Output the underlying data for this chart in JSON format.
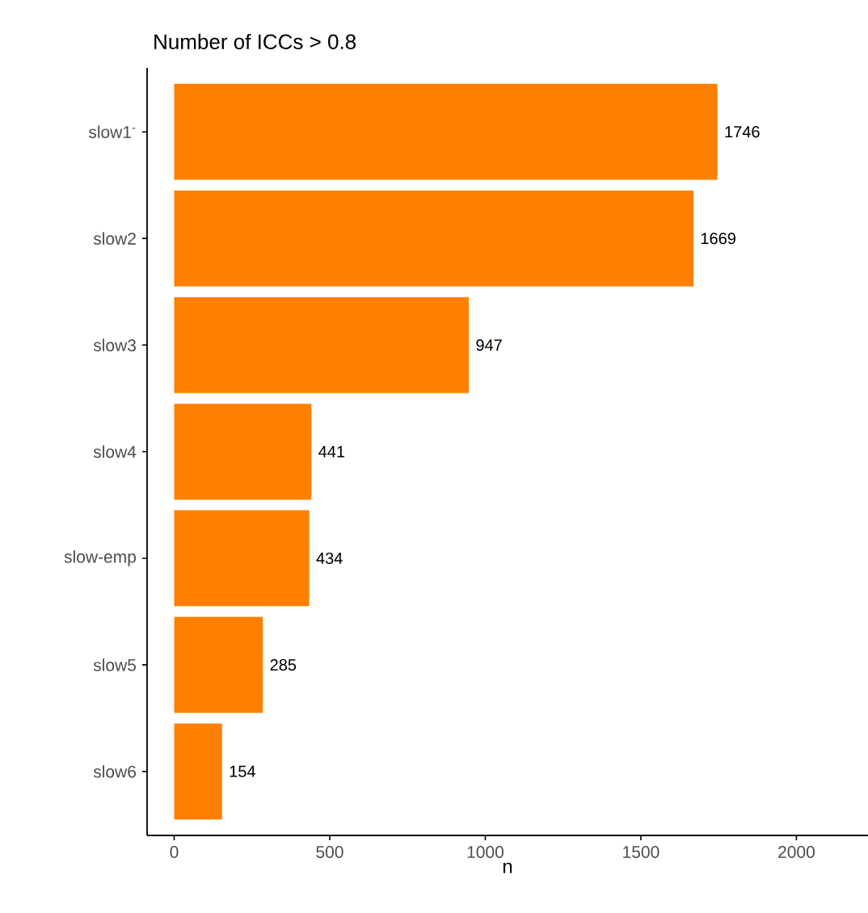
{
  "chart_data": {
    "type": "bar",
    "orientation": "horizontal",
    "title": "Number of ICCs > 0.8",
    "xlabel": "n",
    "categories": [
      "slow1$^{-}$",
      "slow2",
      "slow3",
      "slow4",
      "slow-emp",
      "slow5",
      "slow6"
    ],
    "values": [
      1746,
      1669,
      947,
      441,
      434,
      285,
      154
    ],
    "color": "#ff7f00",
    "data_labels": true,
    "xlim": [
      -87,
      2230
    ],
    "xticks": [
      0,
      500,
      1000,
      1500,
      2000
    ],
    "grid": false
  }
}
